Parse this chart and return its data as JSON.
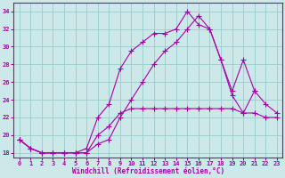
{
  "xlabel": "Windchill (Refroidissement éolien,°C)",
  "background_color": "#cce8e8",
  "grid_color": "#99cccc",
  "line_color": "#aa00aa",
  "xlim": [
    -0.5,
    23.5
  ],
  "ylim": [
    17.5,
    35.0
  ],
  "xticks": [
    0,
    1,
    2,
    3,
    4,
    5,
    6,
    7,
    8,
    9,
    10,
    11,
    12,
    13,
    14,
    15,
    16,
    17,
    18,
    19,
    20,
    21,
    22,
    23
  ],
  "yticks": [
    18,
    20,
    22,
    24,
    26,
    28,
    30,
    32,
    34
  ],
  "line1_x": [
    0,
    1,
    2,
    3,
    4,
    5,
    6,
    7,
    8,
    9,
    10,
    11,
    12,
    13,
    14,
    15,
    16,
    17,
    18,
    19,
    20,
    21,
    22,
    23
  ],
  "line1_y": [
    19.5,
    18.5,
    18.0,
    18.0,
    18.0,
    18.0,
    18.0,
    20.0,
    21.0,
    22.5,
    23.0,
    23.0,
    23.0,
    23.0,
    23.0,
    23.0,
    23.0,
    23.0,
    23.0,
    23.0,
    22.5,
    22.5,
    22.0,
    22.0
  ],
  "line2_x": [
    0,
    1,
    2,
    3,
    4,
    5,
    6,
    7,
    8,
    9,
    10,
    11,
    12,
    13,
    14,
    15,
    16,
    17,
    18,
    19,
    20,
    21
  ],
  "line2_y": [
    19.5,
    18.5,
    18.0,
    18.0,
    18.0,
    18.0,
    18.5,
    22.0,
    23.5,
    27.5,
    29.5,
    30.5,
    31.5,
    31.5,
    32.0,
    34.0,
    32.5,
    32.0,
    28.5,
    25.0,
    28.5,
    25.0
  ],
  "line3_x": [
    0,
    1,
    2,
    3,
    4,
    5,
    6,
    7,
    8,
    9,
    10,
    11,
    12,
    13,
    14,
    15,
    16,
    17,
    18,
    19,
    20,
    21,
    22,
    23
  ],
  "line3_y": [
    19.5,
    18.5,
    18.0,
    18.0,
    18.0,
    18.0,
    18.0,
    19.0,
    19.5,
    22.0,
    24.0,
    26.0,
    28.0,
    29.5,
    30.5,
    32.0,
    33.5,
    32.0,
    28.5,
    24.5,
    22.5,
    25.0,
    23.5,
    22.5
  ]
}
